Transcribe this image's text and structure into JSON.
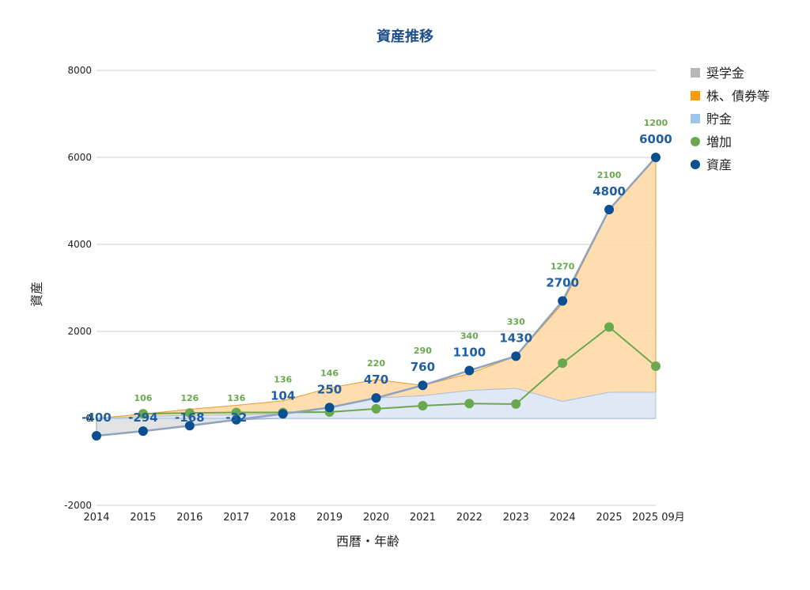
{
  "chart_data": {
    "type": "area",
    "title": "資産推移",
    "xlabel": "西暦・年齢",
    "ylabel": "資産",
    "ylim": [
      -2000,
      8000
    ],
    "yticks": [
      -2000,
      0,
      2000,
      4000,
      6000,
      8000
    ],
    "grid": true,
    "legend_position": "right",
    "categories": [
      "2014",
      "2015",
      "2016",
      "2017",
      "2018",
      "2019",
      "2020",
      "2021",
      "2022",
      "2023",
      "2024",
      "2025",
      "2025 09月"
    ],
    "series": [
      {
        "name": "奨学金",
        "kind": "area",
        "color": "#b7b7b7",
        "values": [
          -400,
          -294,
          -168,
          -32,
          0,
          0,
          0,
          0,
          0,
          0,
          0,
          0,
          0
        ]
      },
      {
        "name": "株、債券等",
        "kind": "area",
        "color": "#ff9900",
        "values": [
          0,
          60,
          140,
          220,
          300,
          450,
          420,
          240,
          390,
          740,
          2250,
          4180,
          5400
        ]
      },
      {
        "name": "貯金",
        "kind": "area",
        "color": "#9fc5e8",
        "values": [
          0,
          40,
          70,
          80,
          104,
          250,
          470,
          520,
          640,
          690,
          390,
          600,
          600
        ]
      },
      {
        "name": "増加",
        "kind": "line",
        "color": "#6aa84f",
        "values": [
          null,
          106,
          126,
          136,
          136,
          146,
          220,
          290,
          340,
          330,
          1270,
          2100,
          1200
        ]
      },
      {
        "name": "資産",
        "kind": "line",
        "color": "#0b4f93",
        "values": [
          -400,
          -294,
          -168,
          -32,
          104,
          250,
          470,
          760,
          1100,
          1430,
          2700,
          4800,
          6000
        ]
      }
    ],
    "data_labels": {
      "資産": [
        "-400",
        "-294",
        "-168",
        "-32",
        "104",
        "250",
        "470",
        "760",
        "1100",
        "1430",
        "2700",
        "4800",
        "6000"
      ],
      "増加": [
        "",
        "106",
        "126",
        "136",
        "136",
        "146",
        "220",
        "290",
        "340",
        "330",
        "1270",
        "2100",
        "1200"
      ]
    }
  }
}
